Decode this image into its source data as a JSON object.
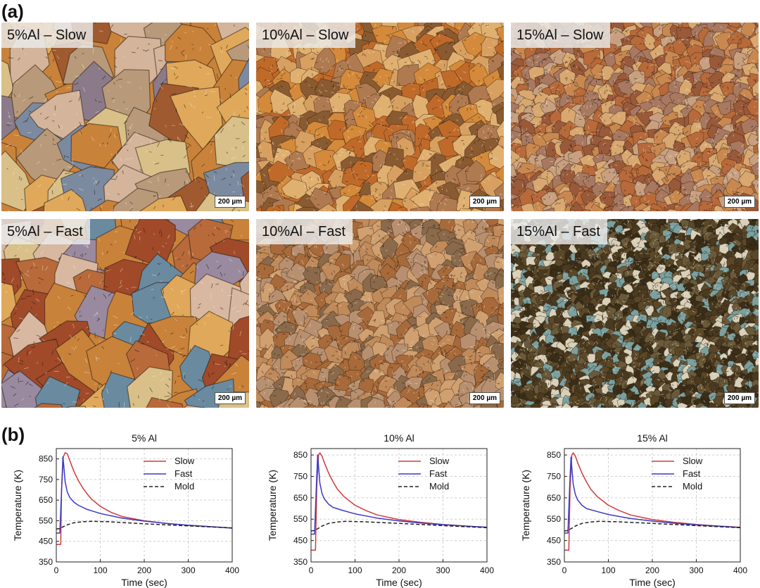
{
  "panel_a_label": "(a)",
  "panel_b_label": "(b)",
  "micrographs": [
    {
      "label": "5%Al – Slow",
      "scale": "200 µm",
      "palette": [
        "#c9823a",
        "#e0a85a",
        "#8a7a8a",
        "#b89a7a",
        "#7c8aa0",
        "#d8c088",
        "#a05a30",
        "#d4b49a"
      ],
      "cell": 48
    },
    {
      "label": "10%Al – Slow",
      "scale": "200 µm",
      "palette": [
        "#c06a2a",
        "#d48a3a",
        "#e0b070",
        "#8a5a30",
        "#b07a50",
        "#d8a060"
      ],
      "cell": 20
    },
    {
      "label": "15%Al – Slow",
      "scale": "200 µm",
      "palette": [
        "#b86a3a",
        "#c88850",
        "#d8a870",
        "#9a5a3a",
        "#c8a080",
        "#a87860"
      ],
      "cell": 14
    },
    {
      "label": "5%Al – Fast",
      "scale": "200 µm",
      "palette": [
        "#c9823a",
        "#e0a85a",
        "#9a8aa0",
        "#b86a3a",
        "#6a8aa0",
        "#d8c088",
        "#a04a2a",
        "#d8b8a0"
      ],
      "cell": 44
    },
    {
      "label": "10%Al – Fast",
      "scale": "200 µm",
      "palette": [
        "#a86a3a",
        "#c08a5a",
        "#d0a070",
        "#8a6a4a",
        "#b89070"
      ],
      "cell": 16
    },
    {
      "label": "15%Al – Fast",
      "scale": "200 µm",
      "palette": [
        "#4a3a20",
        "#5a4828",
        "#3a2e18",
        "#6a5a3a",
        "#d8d0b8",
        "#7aa0a0"
      ],
      "cell": 9
    }
  ],
  "chart_data": [
    {
      "type": "line",
      "title": "5% Al",
      "xlabel": "Time (sec)",
      "ylabel": "Temperature (K)",
      "xlim": [
        0,
        400
      ],
      "ylim": [
        350,
        900
      ],
      "xticks": [
        0,
        100,
        200,
        300,
        400
      ],
      "yticks": [
        350,
        450,
        550,
        650,
        750,
        850
      ],
      "grid": true,
      "legend": "top-right",
      "series": [
        {
          "name": "Slow",
          "color": "#d03a3a",
          "dash": false,
          "points": [
            [
              0,
              435
            ],
            [
              10,
              435
            ],
            [
              12,
              700
            ],
            [
              16,
              860
            ],
            [
              20,
              880
            ],
            [
              25,
              875
            ],
            [
              30,
              845
            ],
            [
              40,
              790
            ],
            [
              50,
              745
            ],
            [
              60,
              710
            ],
            [
              70,
              680
            ],
            [
              80,
              655
            ],
            [
              100,
              620
            ],
            [
              125,
              590
            ],
            [
              150,
              570
            ],
            [
              200,
              550
            ],
            [
              250,
              537
            ],
            [
              300,
              528
            ],
            [
              350,
              521
            ],
            [
              400,
              515
            ]
          ]
        },
        {
          "name": "Fast",
          "color": "#3a3ac8",
          "dash": false,
          "points": [
            [
              0,
              490
            ],
            [
              8,
              490
            ],
            [
              12,
              700
            ],
            [
              15,
              860
            ],
            [
              17,
              820
            ],
            [
              20,
              740
            ],
            [
              25,
              690
            ],
            [
              30,
              665
            ],
            [
              40,
              640
            ],
            [
              50,
              625
            ],
            [
              70,
              605
            ],
            [
              100,
              585
            ],
            [
              150,
              562
            ],
            [
              200,
              548
            ],
            [
              250,
              537
            ],
            [
              300,
              528
            ],
            [
              350,
              521
            ],
            [
              400,
              514
            ]
          ]
        },
        {
          "name": "Mold",
          "color": "#222222",
          "dash": true,
          "points": [
            [
              0,
              510
            ],
            [
              8,
              512
            ],
            [
              15,
              520
            ],
            [
              25,
              530
            ],
            [
              40,
              540
            ],
            [
              60,
              545
            ],
            [
              80,
              547
            ],
            [
              120,
              545
            ],
            [
              160,
              540
            ],
            [
              200,
              535
            ],
            [
              250,
              530
            ],
            [
              300,
              525
            ],
            [
              350,
              520
            ],
            [
              400,
              515
            ]
          ]
        }
      ]
    },
    {
      "type": "line",
      "title": "10% Al",
      "xlabel": "Time (sec)",
      "ylabel": "Temperature (K)",
      "xlim": [
        0,
        400
      ],
      "ylim": [
        350,
        880
      ],
      "xticks": [
        0,
        100,
        200,
        300,
        400
      ],
      "yticks": [
        350,
        450,
        550,
        650,
        750,
        850
      ],
      "grid": true,
      "legend": "top-right",
      "series": [
        {
          "name": "Slow",
          "color": "#d03a3a",
          "dash": false,
          "points": [
            [
              0,
              405
            ],
            [
              10,
              405
            ],
            [
              13,
              700
            ],
            [
              17,
              850
            ],
            [
              20,
              860
            ],
            [
              25,
              845
            ],
            [
              30,
              815
            ],
            [
              40,
              765
            ],
            [
              50,
              725
            ],
            [
              60,
              690
            ],
            [
              75,
              655
            ],
            [
              100,
              615
            ],
            [
              125,
              590
            ],
            [
              150,
              570
            ],
            [
              200,
              548
            ],
            [
              250,
              535
            ],
            [
              300,
              525
            ],
            [
              350,
              518
            ],
            [
              400,
              512
            ]
          ]
        },
        {
          "name": "Fast",
          "color": "#3a3ac8",
          "dash": false,
          "points": [
            [
              0,
              480
            ],
            [
              8,
              480
            ],
            [
              12,
              700
            ],
            [
              15,
              850
            ],
            [
              17,
              800
            ],
            [
              20,
              720
            ],
            [
              25,
              670
            ],
            [
              30,
              645
            ],
            [
              40,
              620
            ],
            [
              50,
              605
            ],
            [
              70,
              592
            ],
            [
              100,
              575
            ],
            [
              150,
              555
            ],
            [
              200,
              542
            ],
            [
              250,
              532
            ],
            [
              300,
              524
            ],
            [
              350,
              518
            ],
            [
              400,
              512
            ]
          ]
        },
        {
          "name": "Mold",
          "color": "#222222",
          "dash": true,
          "points": [
            [
              0,
              495
            ],
            [
              8,
              497
            ],
            [
              15,
              505
            ],
            [
              25,
              518
            ],
            [
              40,
              530
            ],
            [
              60,
              537
            ],
            [
              80,
              540
            ],
            [
              120,
              538
            ],
            [
              160,
              534
            ],
            [
              200,
              530
            ],
            [
              250,
              525
            ],
            [
              300,
              520
            ],
            [
              350,
              515
            ],
            [
              400,
              510
            ]
          ]
        }
      ]
    },
    {
      "type": "line",
      "title": "15% Al",
      "xlabel": "Time (sec)",
      "ylabel": "Temperature (K)",
      "xlim": [
        0,
        400
      ],
      "ylim": [
        350,
        880
      ],
      "xticks": [
        0,
        100,
        200,
        300,
        400
      ],
      "yticks": [
        350,
        450,
        550,
        650,
        750,
        850
      ],
      "grid": true,
      "legend": "top-right",
      "series": [
        {
          "name": "Slow",
          "color": "#d03a3a",
          "dash": false,
          "points": [
            [
              0,
              405
            ],
            [
              10,
              405
            ],
            [
              13,
              700
            ],
            [
              17,
              850
            ],
            [
              20,
              860
            ],
            [
              25,
              845
            ],
            [
              30,
              815
            ],
            [
              40,
              765
            ],
            [
              50,
              725
            ],
            [
              60,
              690
            ],
            [
              75,
              655
            ],
            [
              100,
              615
            ],
            [
              125,
              590
            ],
            [
              150,
              570
            ],
            [
              200,
              548
            ],
            [
              250,
              535
            ],
            [
              300,
              525
            ],
            [
              350,
              518
            ],
            [
              400,
              512
            ]
          ]
        },
        {
          "name": "Fast",
          "color": "#3a3ac8",
          "dash": false,
          "points": [
            [
              0,
              485
            ],
            [
              8,
              485
            ],
            [
              12,
              700
            ],
            [
              15,
              840
            ],
            [
              17,
              790
            ],
            [
              20,
              715
            ],
            [
              25,
              665
            ],
            [
              30,
              640
            ],
            [
              40,
              615
            ],
            [
              50,
              600
            ],
            [
              70,
              588
            ],
            [
              100,
              572
            ],
            [
              150,
              553
            ],
            [
              200,
              541
            ],
            [
              250,
              531
            ],
            [
              300,
              523
            ],
            [
              350,
              517
            ],
            [
              400,
              511
            ]
          ]
        },
        {
          "name": "Mold",
          "color": "#222222",
          "dash": true,
          "points": [
            [
              0,
              495
            ],
            [
              8,
              497
            ],
            [
              15,
              505
            ],
            [
              25,
              518
            ],
            [
              40,
              530
            ],
            [
              60,
              537
            ],
            [
              80,
              540
            ],
            [
              120,
              538
            ],
            [
              160,
              534
            ],
            [
              200,
              530
            ],
            [
              250,
              525
            ],
            [
              300,
              520
            ],
            [
              350,
              515
            ],
            [
              400,
              510
            ]
          ]
        }
      ]
    }
  ]
}
